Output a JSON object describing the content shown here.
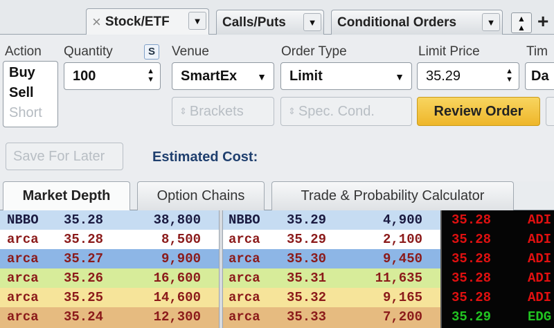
{
  "top_tabs": [
    {
      "label": "Stock/ETF",
      "close": "×",
      "active": true
    },
    {
      "label": "Calls/Puts"
    },
    {
      "label": "Conditional Orders"
    }
  ],
  "order": {
    "action_label": "Action",
    "action_options": [
      "Buy",
      "Sell",
      "Short"
    ],
    "quantity_label": "Quantity",
    "quantity_toggle": "S",
    "quantity_value": "100",
    "venue_label": "Venue",
    "venue_value": "SmartEx",
    "order_type_label": "Order Type",
    "order_type_value": "Limit",
    "limit_price_label": "Limit Price",
    "limit_price_value": "35.29",
    "time_label": "Tim",
    "time_value": "Da",
    "brackets_label": "Brackets",
    "spec_cond_label": "Spec. Cond.",
    "review_label": "Review Order",
    "save_label": "Save For Later",
    "estimated_cost_label": "Estimated Cost:"
  },
  "lower_tabs": [
    "Market Depth",
    "Option Chains",
    "Trade & Probability Calculator"
  ],
  "bids": [
    {
      "exch": "NBBO",
      "price": "35.28",
      "size": "38,800"
    },
    {
      "exch": "arca",
      "price": "35.28",
      "size": "8,500"
    },
    {
      "exch": "arca",
      "price": "35.27",
      "size": "9,900"
    },
    {
      "exch": "arca",
      "price": "35.26",
      "size": "16,600"
    },
    {
      "exch": "arca",
      "price": "35.25",
      "size": "14,600"
    },
    {
      "exch": "arca",
      "price": "35.24",
      "size": "12,300"
    }
  ],
  "asks": [
    {
      "exch": "NBBO",
      "price": "35.29",
      "size": "4,900"
    },
    {
      "exch": "arca",
      "price": "35.29",
      "size": "2,100"
    },
    {
      "exch": "arca",
      "price": "35.30",
      "size": "9,450"
    },
    {
      "exch": "arca",
      "price": "35.31",
      "size": "11,635"
    },
    {
      "exch": "arca",
      "price": "35.32",
      "size": "9,165"
    },
    {
      "exch": "arca",
      "price": "35.33",
      "size": "7,200"
    }
  ],
  "tape": [
    {
      "price": "35.28",
      "exch": "ADI"
    },
    {
      "price": "35.28",
      "exch": "ADI"
    },
    {
      "price": "35.28",
      "exch": "ADI"
    },
    {
      "price": "35.28",
      "exch": "ADI"
    },
    {
      "price": "35.28",
      "exch": "ADI"
    },
    {
      "price": "35.29",
      "exch": "EDG"
    }
  ],
  "colors": {
    "row_bg": [
      "#c6dcf2",
      "#ffffff",
      "#8db6e6",
      "#d7ec9a",
      "#f6e49a",
      "#e6bb80"
    ],
    "nbbo_text": "#1a1a40",
    "level_text": "#8b1a1a",
    "tape_red": "#e01010",
    "tape_green": "#21c421",
    "review_bg": "#f3c13a"
  }
}
